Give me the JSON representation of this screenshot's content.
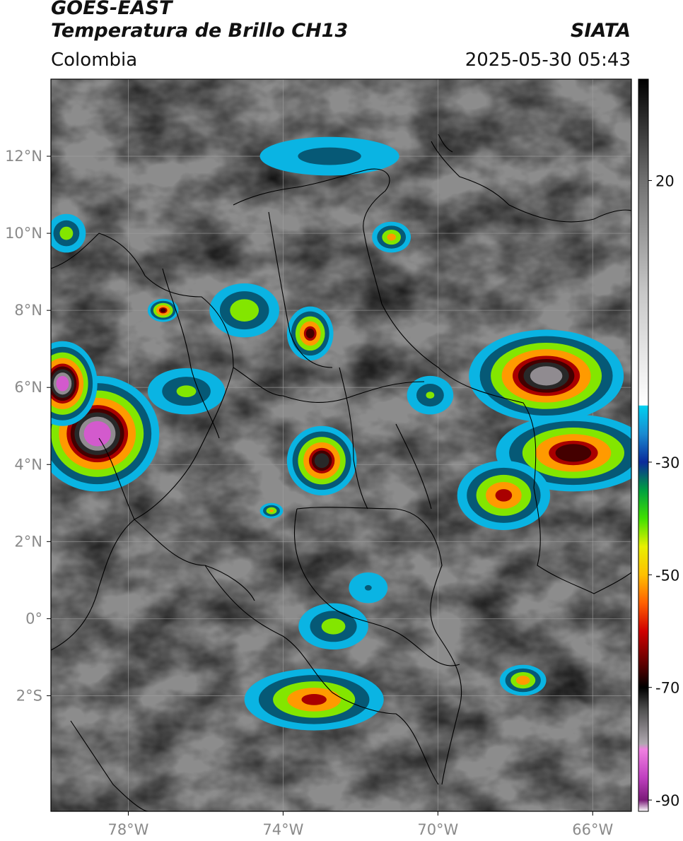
{
  "header": {
    "title_line1": "GOES-EAST",
    "title_line2": "Temperatura de Brillo CH13",
    "brand": "SIATA",
    "region": "Colombia",
    "timestamp": "2025-05-30 05:43"
  },
  "map": {
    "lon_range": [
      -80,
      -65
    ],
    "lat_range": [
      -5,
      14
    ],
    "lat_ticks": [
      {
        "value": 12,
        "label": "12°N"
      },
      {
        "value": 10,
        "label": "10°N"
      },
      {
        "value": 8,
        "label": "8°N"
      },
      {
        "value": 6,
        "label": "6°N"
      },
      {
        "value": 4,
        "label": "4°N"
      },
      {
        "value": 2,
        "label": "2°N"
      },
      {
        "value": 0,
        "label": "0°"
      },
      {
        "value": -2,
        "label": "2°S"
      }
    ],
    "lon_ticks": [
      {
        "value": -78,
        "label": "78°W"
      },
      {
        "value": -74,
        "label": "74°W"
      },
      {
        "value": -70,
        "label": "70°W"
      },
      {
        "value": -66,
        "label": "66°W"
      }
    ],
    "grid": true,
    "storm_cells": [
      {
        "lon": -78.8,
        "lat": 4.8,
        "rlon": 1.6,
        "rlat": 1.5,
        "min_temp": -85
      },
      {
        "lon": -79.7,
        "lat": 6.1,
        "rlon": 0.9,
        "rlat": 1.1,
        "min_temp": -82
      },
      {
        "lon": -73.0,
        "lat": 4.1,
        "rlon": 0.9,
        "rlat": 0.9,
        "min_temp": -72
      },
      {
        "lon": -73.3,
        "lat": 7.4,
        "rlon": 0.6,
        "rlat": 0.7,
        "min_temp": -65
      },
      {
        "lon": -67.2,
        "lat": 6.3,
        "rlon": 2.0,
        "rlat": 1.2,
        "min_temp": -78
      },
      {
        "lon": -66.5,
        "lat": 4.3,
        "rlon": 2.0,
        "rlat": 1.0,
        "min_temp": -68
      },
      {
        "lon": -68.3,
        "lat": 3.2,
        "rlon": 1.2,
        "rlat": 0.9,
        "min_temp": -60
      },
      {
        "lon": -73.2,
        "lat": -2.1,
        "rlon": 1.8,
        "rlat": 0.8,
        "min_temp": -60
      },
      {
        "lon": -72.7,
        "lat": -0.2,
        "rlon": 0.9,
        "rlat": 0.6,
        "min_temp": -45
      },
      {
        "lon": -76.5,
        "lat": 5.9,
        "rlon": 1.0,
        "rlat": 0.6,
        "min_temp": -42
      },
      {
        "lon": -75.0,
        "lat": 8.0,
        "rlon": 0.9,
        "rlat": 0.7,
        "min_temp": -48
      },
      {
        "lon": -71.2,
        "lat": 9.9,
        "rlon": 0.5,
        "rlat": 0.4,
        "min_temp": -52
      },
      {
        "lon": -79.6,
        "lat": 10.0,
        "rlon": 0.5,
        "rlat": 0.5,
        "min_temp": -45
      },
      {
        "lon": -77.1,
        "lat": 8.0,
        "rlon": 0.4,
        "rlat": 0.3,
        "min_temp": -65
      },
      {
        "lon": -70.2,
        "lat": 5.8,
        "rlon": 0.6,
        "rlat": 0.5,
        "min_temp": -40
      },
      {
        "lon": -67.8,
        "lat": -1.6,
        "rlon": 0.6,
        "rlat": 0.4,
        "min_temp": -55
      },
      {
        "lon": -74.3,
        "lat": 2.8,
        "rlon": 0.3,
        "rlat": 0.2,
        "min_temp": -50
      },
      {
        "lon": -72.8,
        "lat": 12.0,
        "rlon": 1.8,
        "rlat": 0.5,
        "min_temp": -35
      },
      {
        "lon": -71.8,
        "lat": 0.8,
        "rlon": 0.5,
        "rlat": 0.4,
        "min_temp": -30
      }
    ]
  },
  "colorbar": {
    "range": [
      -92,
      38
    ],
    "ticks": [
      {
        "value": 20,
        "label": "20"
      },
      {
        "value": -30,
        "label": "-30"
      },
      {
        "value": -50,
        "label": "-50"
      },
      {
        "value": -70,
        "label": "-70"
      },
      {
        "value": -90,
        "label": "-90"
      }
    ],
    "stops": [
      {
        "value": -92,
        "color": "#ffffff"
      },
      {
        "value": -90,
        "color": "#7a1a78"
      },
      {
        "value": -86,
        "color": "#c040c0"
      },
      {
        "value": -81,
        "color": "#f080e0"
      },
      {
        "value": -80,
        "color": "#b0a8b0"
      },
      {
        "value": -74,
        "color": "#505050"
      },
      {
        "value": -70,
        "color": "#000000"
      },
      {
        "value": -66,
        "color": "#5a0000"
      },
      {
        "value": -60,
        "color": "#d00000"
      },
      {
        "value": -55,
        "color": "#ff6000"
      },
      {
        "value": -50,
        "color": "#ffc000"
      },
      {
        "value": -45,
        "color": "#e8f000"
      },
      {
        "value": -40,
        "color": "#40e000"
      },
      {
        "value": -35,
        "color": "#00a040"
      },
      {
        "value": -30,
        "color": "#0a2a9a"
      },
      {
        "value": -25,
        "color": "#1a8ad0"
      },
      {
        "value": -20,
        "color": "#00d0f0"
      },
      {
        "value": -19.9,
        "color": "#ffffff"
      },
      {
        "value": 0,
        "color": "#c8c8c8"
      },
      {
        "value": 20,
        "color": "#707070"
      },
      {
        "value": 38,
        "color": "#000000"
      }
    ]
  }
}
